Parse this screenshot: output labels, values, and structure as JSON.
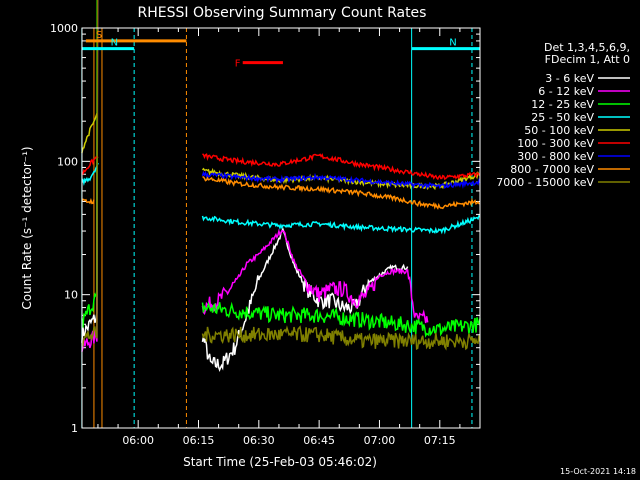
{
  "chart_data": {
    "type": "line",
    "title": "RHESSI Observing Summary Count Rates",
    "xlabel": "Start Time (25-Feb-03 05:46:02)",
    "ylabel": "Count Rate (s⁻¹ detector⁻¹)",
    "y_scale": "log",
    "ylim": [
      1,
      1000
    ],
    "xlim": [
      "05:46:02",
      "07:25:00"
    ],
    "x_ticks": [
      "06:00",
      "06:15",
      "06:30",
      "06:45",
      "07:00",
      "07:15"
    ],
    "y_ticks": [
      "1",
      "10",
      "100",
      "1000"
    ],
    "grid": false,
    "legend_position": "right",
    "legend_header": [
      "Det 1,3,4,5,6,9,",
      "FDecim 1, Att 0"
    ],
    "footer_stamp": "15-Oct-2021 14:18",
    "series": [
      {
        "name": "3 - 6 keV",
        "color": "#ffffff",
        "x": [
          "05:46",
          "05:48",
          "05:50",
          "06:16",
          "06:18",
          "06:21",
          "06:24",
          "06:27",
          "06:30",
          "06:33",
          "06:36",
          "06:39",
          "06:42",
          "06:45",
          "06:48",
          "06:51",
          "06:54",
          "06:57",
          "07:00",
          "07:03",
          "07:07"
        ],
        "y": [
          5.0,
          6.0,
          7.0,
          5.0,
          3.0,
          3.0,
          4.0,
          7.0,
          13.0,
          20.0,
          30.0,
          16.0,
          11.0,
          9.0,
          9.0,
          8.0,
          8.0,
          12.0,
          14.0,
          16.0,
          16.0
        ]
      },
      {
        "name": "6 - 12 keV",
        "color": "#ff00ff",
        "x": [
          "05:46",
          "05:48",
          "05:50",
          "06:16",
          "06:20",
          "06:24",
          "06:27",
          "06:30",
          "06:33",
          "06:36",
          "06:39",
          "06:42",
          "06:45",
          "06:48",
          "06:51",
          "06:54",
          "06:57",
          "07:00",
          "07:03",
          "07:07",
          "07:09",
          "07:10",
          "07:12"
        ],
        "y": [
          4.0,
          4.5,
          5.0,
          8.0,
          9.0,
          12.0,
          17.0,
          20.0,
          25.0,
          31.0,
          17.0,
          12.0,
          10.0,
          11.0,
          11.0,
          9.0,
          10.0,
          14.0,
          15.0,
          15.0,
          6.5,
          6.5,
          6.5
        ]
      },
      {
        "name": "12 - 25 keV",
        "color": "#00ff00",
        "x": [
          "05:46",
          "05:48",
          "05:50",
          "06:16",
          "06:25",
          "06:35",
          "06:45",
          "06:55",
          "07:05",
          "07:15",
          "07:25"
        ],
        "y": [
          6.0,
          8.0,
          10.0,
          8.0,
          7.5,
          7.0,
          7.0,
          6.5,
          6.0,
          5.5,
          6.0
        ]
      },
      {
        "name": "25 - 50 keV",
        "color": "#00ffff",
        "x": [
          "05:46",
          "05:48",
          "05:50",
          "06:16",
          "06:25",
          "06:35",
          "06:45",
          "06:55",
          "07:05",
          "07:15",
          "07:25"
        ],
        "y": [
          70.0,
          75.0,
          95.0,
          38.0,
          35.0,
          33.0,
          34.0,
          32.0,
          31.0,
          30.0,
          38.0
        ]
      },
      {
        "name": "50 - 100 keV",
        "color": "#cccc00",
        "x": [
          "05:46",
          "05:48",
          "05:50",
          "06:16",
          "06:25",
          "06:35",
          "06:45",
          "06:55",
          "07:05",
          "07:15",
          "07:25"
        ],
        "y": [
          120.0,
          170.0,
          230.0,
          85.0,
          78.0,
          72.0,
          75.0,
          70.0,
          66.0,
          65.0,
          80.0
        ]
      },
      {
        "name": "100 - 300 keV",
        "color": "#ff0000",
        "x": [
          "05:46",
          "05:48",
          "05:50",
          "06:16",
          "06:25",
          "06:35",
          "06:45",
          "06:55",
          "07:05",
          "07:15",
          "07:25"
        ],
        "y": [
          80.0,
          95.0,
          110.0,
          110.0,
          100.0,
          95.0,
          110.0,
          95.0,
          85.0,
          75.0,
          80.0
        ]
      },
      {
        "name": "300 - 800 keV",
        "color": "#0000ff",
        "x": [
          "06:16",
          "06:25",
          "06:35",
          "06:45",
          "06:55",
          "07:05",
          "07:15",
          "07:25"
        ],
        "y": [
          80.0,
          76.0,
          73.0,
          76.0,
          72.0,
          68.0,
          65.0,
          70.0
        ]
      },
      {
        "name": "800 - 7000 keV",
        "color": "#ff8c00",
        "x": [
          "05:46",
          "05:49",
          "06:16",
          "06:25",
          "06:35",
          "06:45",
          "06:55",
          "07:05",
          "07:10",
          "07:15",
          "07:25"
        ],
        "y": [
          50.0,
          50.0,
          75.0,
          68.0,
          64.0,
          62.0,
          58.0,
          52.0,
          48.0,
          46.0,
          50.0
        ]
      },
      {
        "name": "7000 - 15000 keV",
        "color": "#808000",
        "x": [
          "05:46",
          "05:48",
          "05:50",
          "06:16",
          "06:25",
          "06:35",
          "06:45",
          "06:55",
          "07:05",
          "07:15",
          "07:25"
        ],
        "y": [
          4.5,
          5.0,
          5.0,
          5.0,
          5.0,
          5.0,
          5.0,
          4.5,
          4.5,
          4.5,
          4.5
        ]
      }
    ],
    "markers": [
      {
        "label": "S",
        "color": "#ff8c00",
        "start": "05:47",
        "end": "06:12",
        "y": 800
      },
      {
        "label": "N",
        "color": "#00ffff",
        "start": "05:46",
        "end": "05:59",
        "y": 700
      },
      {
        "label": "N",
        "color": "#00ffff",
        "start": "07:08",
        "end": "07:25",
        "y": 700
      },
      {
        "label": "F",
        "color": "#ff0000",
        "start": "06:26",
        "end": "06:36",
        "y": 550
      }
    ],
    "vertical_lines": [
      {
        "t": "05:49",
        "color": "#ff8c00",
        "style": "solid"
      },
      {
        "t": "05:51",
        "color": "#ff8c00",
        "style": "solid"
      },
      {
        "t": "06:12",
        "color": "#ff8c00",
        "style": "dashed"
      },
      {
        "t": "05:59",
        "color": "#00ffff",
        "style": "dashed"
      },
      {
        "t": "07:08",
        "color": "#00ffff",
        "style": "solid"
      },
      {
        "t": "07:23",
        "color": "#00ffff",
        "style": "dashed"
      },
      {
        "t": "05:46",
        "color": "#00ffff",
        "style": "solid"
      }
    ]
  }
}
